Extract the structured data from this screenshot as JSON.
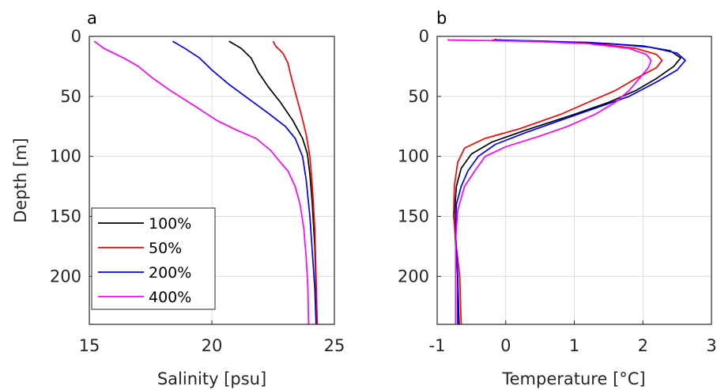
{
  "chart_data": [
    {
      "type": "line",
      "panel_label": "a",
      "xlabel": "Salinity [psu]",
      "ylabel": "Depth [m]",
      "xlim": [
        15,
        25
      ],
      "ylim": [
        240,
        0
      ],
      "xticks": [
        15,
        20,
        25
      ],
      "yticks": [
        0,
        50,
        100,
        150,
        200
      ],
      "grid": true,
      "legend": "bottom-left",
      "series": [
        {
          "name": "100%",
          "color": "#000000",
          "points": [
            [
              20.7,
              4
            ],
            [
              21.2,
              10
            ],
            [
              21.6,
              18
            ],
            [
              21.9,
              30
            ],
            [
              22.3,
              42
            ],
            [
              22.8,
              55
            ],
            [
              23.3,
              70
            ],
            [
              23.7,
              85
            ],
            [
              23.9,
              98
            ],
            [
              24.0,
              115
            ],
            [
              24.1,
              140
            ],
            [
              24.2,
              175
            ],
            [
              24.25,
              210
            ],
            [
              24.3,
              240
            ]
          ]
        },
        {
          "name": "50%",
          "color": "#ff0000",
          "points": [
            [
              22.5,
              4
            ],
            [
              22.6,
              8
            ],
            [
              22.9,
              14
            ],
            [
              23.1,
              22
            ],
            [
              23.25,
              35
            ],
            [
              23.45,
              50
            ],
            [
              23.65,
              65
            ],
            [
              23.85,
              82
            ],
            [
              24.0,
              100
            ],
            [
              24.1,
              125
            ],
            [
              24.2,
              160
            ],
            [
              24.25,
              200
            ],
            [
              24.3,
              240
            ]
          ]
        },
        {
          "name": "200%",
          "color": "#0000ff",
          "points": [
            [
              18.4,
              4
            ],
            [
              18.9,
              10
            ],
            [
              19.5,
              18
            ],
            [
              20.0,
              28
            ],
            [
              20.7,
              40
            ],
            [
              21.5,
              52
            ],
            [
              22.3,
              64
            ],
            [
              23.0,
              75
            ],
            [
              23.4,
              85
            ],
            [
              23.7,
              100
            ],
            [
              23.85,
              120
            ],
            [
              24.0,
              150
            ],
            [
              24.1,
              180
            ],
            [
              24.2,
              210
            ],
            [
              24.25,
              240
            ]
          ]
        },
        {
          "name": "400%",
          "color": "#ff00ff",
          "points": [
            [
              15.2,
              4
            ],
            [
              15.6,
              10
            ],
            [
              16.4,
              18
            ],
            [
              17.0,
              25
            ],
            [
              17.6,
              35
            ],
            [
              18.3,
              45
            ],
            [
              19.3,
              58
            ],
            [
              20.2,
              70
            ],
            [
              21.0,
              78
            ],
            [
              21.8,
              85
            ],
            [
              22.4,
              95
            ],
            [
              22.8,
              105
            ],
            [
              23.1,
              112
            ],
            [
              23.4,
              125
            ],
            [
              23.6,
              140
            ],
            [
              23.75,
              160
            ],
            [
              23.85,
              185
            ],
            [
              23.92,
              210
            ],
            [
              23.95,
              240
            ]
          ]
        }
      ]
    },
    {
      "type": "line",
      "panel_label": "b",
      "xlabel": "Temperature [°C]",
      "ylabel": "",
      "xlim": [
        -1,
        3
      ],
      "ylim": [
        240,
        0
      ],
      "xticks": [
        -1,
        0,
        1,
        2,
        3
      ],
      "yticks": [
        0,
        50,
        100,
        150,
        200
      ],
      "grid": true,
      "series": [
        {
          "name": "100%",
          "color": "#000000",
          "points": [
            [
              -0.15,
              2
            ],
            [
              -0.15,
              3
            ],
            [
              0.3,
              4
            ],
            [
              1.2,
              5
            ],
            [
              2.0,
              8
            ],
            [
              2.4,
              12
            ],
            [
              2.55,
              18
            ],
            [
              2.45,
              25
            ],
            [
              2.2,
              35
            ],
            [
              1.9,
              45
            ],
            [
              1.5,
              55
            ],
            [
              1.0,
              65
            ],
            [
              0.3,
              78
            ],
            [
              -0.2,
              88
            ],
            [
              -0.5,
              98
            ],
            [
              -0.65,
              110
            ],
            [
              -0.72,
              125
            ],
            [
              -0.75,
              150
            ],
            [
              -0.73,
              175
            ],
            [
              -0.7,
              200
            ],
            [
              -0.68,
              240
            ]
          ]
        },
        {
          "name": "50%",
          "color": "#ff0000",
          "points": [
            [
              -0.2,
              3
            ],
            [
              0.5,
              4
            ],
            [
              1.3,
              6
            ],
            [
              1.9,
              10
            ],
            [
              2.2,
              15
            ],
            [
              2.28,
              20
            ],
            [
              2.2,
              26
            ],
            [
              1.9,
              35
            ],
            [
              1.6,
              45
            ],
            [
              1.2,
              55
            ],
            [
              0.8,
              65
            ],
            [
              0.2,
              77
            ],
            [
              -0.3,
              85
            ],
            [
              -0.6,
              93
            ],
            [
              -0.7,
              105
            ],
            [
              -0.75,
              125
            ],
            [
              -0.76,
              150
            ],
            [
              -0.72,
              175
            ],
            [
              -0.67,
              200
            ],
            [
              -0.65,
              240
            ]
          ]
        },
        {
          "name": "200%",
          "color": "#0000ff",
          "points": [
            [
              -0.15,
              3
            ],
            [
              0.6,
              4
            ],
            [
              1.5,
              6
            ],
            [
              2.1,
              9
            ],
            [
              2.5,
              14
            ],
            [
              2.62,
              20
            ],
            [
              2.5,
              28
            ],
            [
              2.2,
              38
            ],
            [
              1.8,
              50
            ],
            [
              1.4,
              58
            ],
            [
              0.9,
              68
            ],
            [
              0.3,
              80
            ],
            [
              -0.15,
              90
            ],
            [
              -0.4,
              100
            ],
            [
              -0.55,
              112
            ],
            [
              -0.65,
              125
            ],
            [
              -0.72,
              140
            ],
            [
              -0.73,
              160
            ],
            [
              -0.72,
              180
            ],
            [
              -0.7,
              200
            ],
            [
              -0.7,
              240
            ]
          ]
        },
        {
          "name": "400%",
          "color": "#ff00ff",
          "points": [
            [
              -0.85,
              3
            ],
            [
              0.3,
              4
            ],
            [
              1.2,
              6
            ],
            [
              1.8,
              10
            ],
            [
              2.05,
              15
            ],
            [
              2.12,
              20
            ],
            [
              2.08,
              26
            ],
            [
              1.95,
              35
            ],
            [
              1.8,
              45
            ],
            [
              1.6,
              55
            ],
            [
              1.3,
              65
            ],
            [
              0.9,
              75
            ],
            [
              0.5,
              83
            ],
            [
              0.0,
              92
            ],
            [
              -0.3,
              100
            ],
            [
              -0.45,
              112
            ],
            [
              -0.6,
              125
            ],
            [
              -0.7,
              145
            ],
            [
              -0.73,
              170
            ],
            [
              -0.73,
              200
            ],
            [
              -0.73,
              240
            ]
          ]
        }
      ]
    }
  ]
}
